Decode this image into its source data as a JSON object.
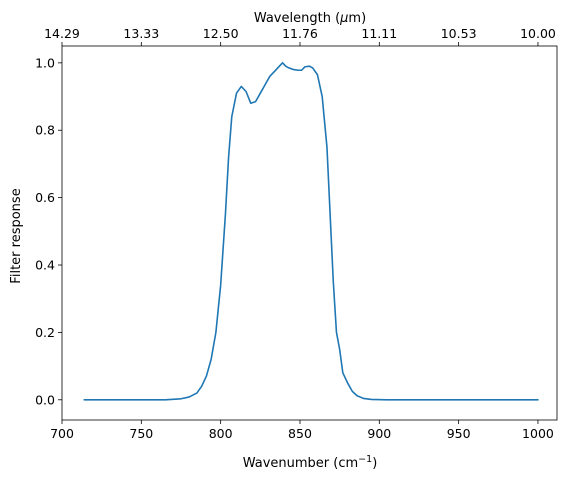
{
  "chart_data": {
    "type": "line",
    "xlabel_main": "Wavenumber (cm",
    "xlabel_sup": "−1",
    "xlabel_tail": ")",
    "ylabel": "Filter response",
    "top_xlabel_main": "Wavelength (",
    "top_xlabel_mu": "μ",
    "top_xlabel_tail": "m)",
    "xlim": [
      700,
      1012
    ],
    "ylim": [
      -0.06,
      1.05
    ],
    "xticks": [
      {
        "value": 700,
        "label": "700"
      },
      {
        "value": 750,
        "label": "750"
      },
      {
        "value": 800,
        "label": "800"
      },
      {
        "value": 850,
        "label": "850"
      },
      {
        "value": 900,
        "label": "900"
      },
      {
        "value": 950,
        "label": "950"
      },
      {
        "value": 1000,
        "label": "1000"
      }
    ],
    "yticks": [
      {
        "value": 0.0,
        "label": "0.0"
      },
      {
        "value": 0.2,
        "label": "0.2"
      },
      {
        "value": 0.4,
        "label": "0.4"
      },
      {
        "value": 0.6,
        "label": "0.6"
      },
      {
        "value": 0.8,
        "label": "0.8"
      },
      {
        "value": 1.0,
        "label": "1.0"
      }
    ],
    "top_xticks": [
      {
        "wavenumber": 700,
        "label": "14.29"
      },
      {
        "wavenumber": 750,
        "label": "13.33"
      },
      {
        "wavenumber": 800,
        "label": "12.50"
      },
      {
        "wavenumber": 850,
        "label": "11.76"
      },
      {
        "wavenumber": 900,
        "label": "11.11"
      },
      {
        "wavenumber": 950,
        "label": "10.53"
      },
      {
        "wavenumber": 1000,
        "label": "10.00"
      }
    ],
    "grid": false,
    "series": [
      {
        "color": "#1f77b4",
        "x": [
          714,
          740,
          765,
          775,
          780,
          785,
          788,
          791,
          794,
          797,
          800,
          803,
          805,
          807,
          810,
          813,
          816,
          819,
          822,
          825,
          828,
          831,
          834,
          837,
          839,
          841,
          843,
          846,
          849,
          851,
          853,
          856,
          858,
          861,
          864,
          867,
          869,
          871,
          873,
          875,
          877,
          880,
          883,
          886,
          890,
          895,
          905,
          930,
          960,
          1000
        ],
        "y": [
          0.0,
          0.0,
          0.0,
          0.003,
          0.008,
          0.02,
          0.04,
          0.07,
          0.12,
          0.2,
          0.34,
          0.55,
          0.72,
          0.84,
          0.91,
          0.93,
          0.915,
          0.88,
          0.885,
          0.91,
          0.935,
          0.96,
          0.975,
          0.99,
          1.0,
          0.99,
          0.985,
          0.98,
          0.978,
          0.978,
          0.988,
          0.99,
          0.985,
          0.965,
          0.9,
          0.75,
          0.55,
          0.35,
          0.2,
          0.15,
          0.08,
          0.05,
          0.025,
          0.012,
          0.004,
          0.001,
          0.0,
          0.0,
          0.0,
          0.0
        ]
      }
    ]
  }
}
